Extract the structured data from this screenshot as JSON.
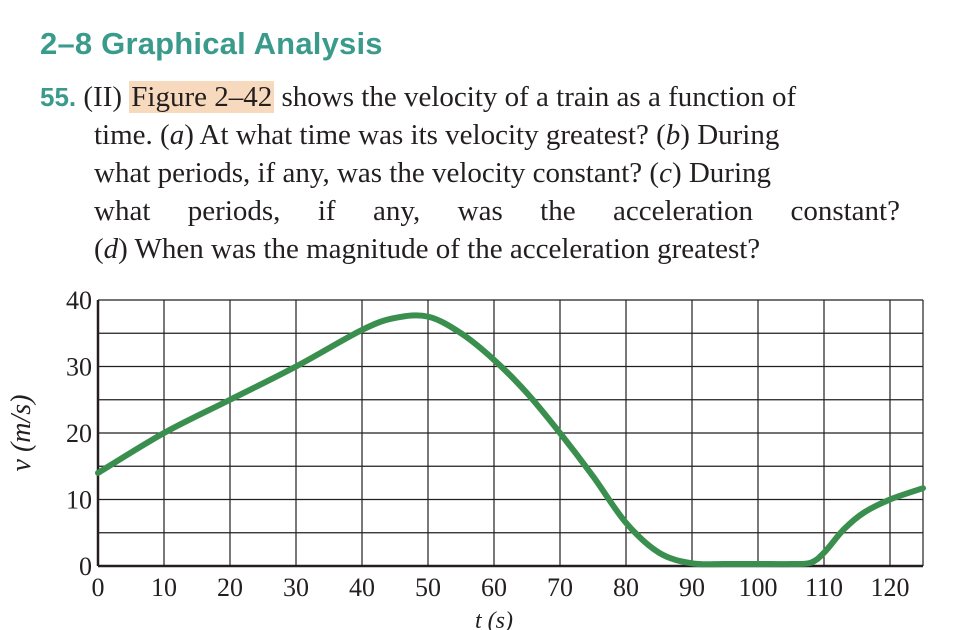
{
  "section": {
    "title": "2–8 Graphical Analysis"
  },
  "problem": {
    "number": "55.",
    "level": "(II)",
    "figure_ref": "Figure 2–42",
    "line1_rest": "shows the velocity of a train as a function of",
    "line2": {
      "pre": "time. (",
      "a": "a",
      "post": ") At what time was its velocity greatest? (",
      "b": "b",
      "post2": ") During"
    },
    "line3": {
      "pre": "what periods, if any, was the velocity constant? (",
      "c": "c",
      "post": ") During"
    },
    "line4": "what periods, if any, was the acceleration constant?",
    "line5": {
      "pre": "(",
      "d": "d",
      "post": ") When was the magnitude of the acceleration greatest?"
    }
  },
  "chart_data": {
    "type": "line",
    "xlabel": "t (s)",
    "ylabel": "v (m/s)",
    "xlim": [
      0,
      125
    ],
    "ylim": [
      0,
      40
    ],
    "x_ticks": [
      0,
      10,
      20,
      30,
      40,
      50,
      60,
      70,
      80,
      90,
      100,
      110,
      120
    ],
    "y_ticks": [
      0,
      10,
      20,
      30,
      40
    ],
    "grid": true,
    "line_color": "#3a8f4f",
    "series": [
      {
        "x": [
          0,
          10,
          20,
          30,
          40,
          45,
          50,
          55,
          60,
          65,
          70,
          75,
          80,
          85,
          90,
          95,
          100,
          105,
          108,
          110,
          113,
          116,
          120,
          125
        ],
        "y": [
          14,
          20,
          25,
          30,
          35.5,
          37.3,
          37.5,
          35,
          31,
          26,
          20,
          13.5,
          6.5,
          2,
          0.4,
          0.3,
          0.3,
          0.3,
          0.5,
          2,
          5.5,
          8,
          10,
          11.7
        ]
      }
    ]
  }
}
